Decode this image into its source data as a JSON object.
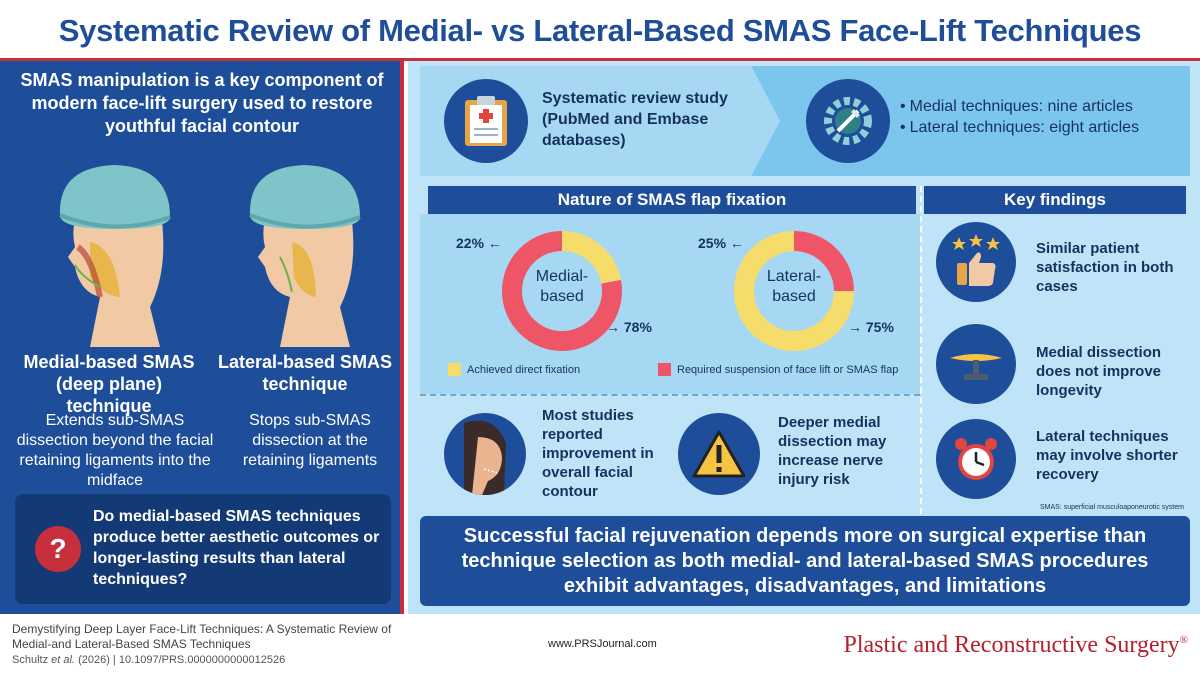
{
  "title": "Systematic Review of Medial- vs Lateral-Based SMAS Face-Lift Techniques",
  "left": {
    "intro": "SMAS manipulation is a key component of modern face-lift surgery used to restore youthful facial contour",
    "medial_title": "Medial-based SMAS (deep plane) technique",
    "lateral_title": "Lateral-based SMAS technique",
    "medial_desc": "Extends sub-SMAS dissection beyond the facial retaining ligaments into the midface",
    "lateral_desc": "Stops sub-SMAS dissection at the retaining ligaments",
    "question": "Do medial-based SMAS techniques produce better aesthetic outcomes or longer-lasting results than lateral techniques?"
  },
  "study": {
    "text": "Systematic review study (PubMed and Embase databases)",
    "articles": [
      "Medial techniques: nine articles",
      "Lateral techniques: eight articles"
    ]
  },
  "fixation": {
    "header": "Nature of SMAS flap fixation",
    "medial_label": "Medial-based",
    "lateral_label": "Lateral-based",
    "legend_yellow": "Achieved direct fixation",
    "legend_red": "Required suspension of face lift or SMAS flap"
  },
  "chart_data": [
    {
      "type": "pie",
      "title": "Medial-based",
      "categories": [
        "Achieved direct fixation",
        "Required suspension of face lift or SMAS flap"
      ],
      "values": [
        22,
        78
      ],
      "labels": [
        "22%",
        "78%"
      ]
    },
    {
      "type": "pie",
      "title": "Lateral-based",
      "categories": [
        "Achieved direct fixation",
        "Required suspension of face lift or SMAS flap"
      ],
      "values": [
        75,
        25
      ],
      "labels": [
        "75%",
        "25%"
      ]
    }
  ],
  "colors": {
    "yellow": "#f6dd6b",
    "red": "#ee5566",
    "navy": "#1e4e9a",
    "accent_red": "#c62f3b"
  },
  "outcomes": {
    "contour": "Most studies reported improvement in overall facial contour",
    "nerve": "Deeper medial dissection may increase nerve injury risk"
  },
  "findings": {
    "header": "Key findings",
    "items": [
      {
        "text": "Similar patient satisfaction in both cases",
        "icon": "thumbs-up-stars-icon"
      },
      {
        "text": "Medial dissection does not improve longevity",
        "icon": "balance-scale-icon"
      },
      {
        "text": "Lateral techniques may involve shorter recovery",
        "icon": "alarm-clock-icon"
      }
    ],
    "footnote": "SMAS: superficial musculoaponeurotic system"
  },
  "conclusion": "Successful facial rejuvenation depends more on surgical expertise than technique selection as both medial- and lateral-based SMAS procedures exhibit advantages, disadvantages, and limitations",
  "footer": {
    "cite_title": "Demystifying Deep Layer Face-Lift Techniques: A Systematic Review of Medial-and Lateral-Based SMAS Techniques",
    "cite_author": "Schultz",
    "cite_etal": "et al.",
    "cite_rest": "(2026) | 10.1097/PRS.0000000000012526",
    "url": "www.PRSJournal.com",
    "journal": "Plastic and Reconstructive Surgery",
    "journal_mark": "®"
  }
}
